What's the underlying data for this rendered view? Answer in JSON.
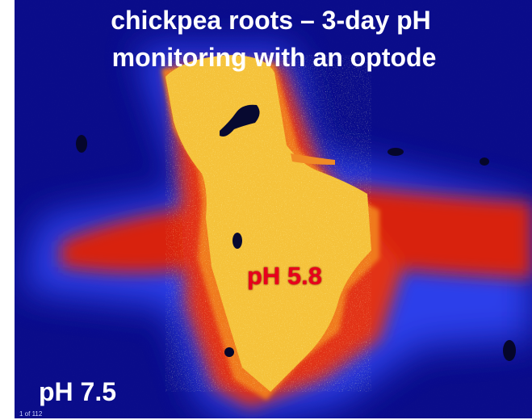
{
  "title": {
    "line1": "chickpea roots – 3-day pH",
    "line2": "monitoring with an optode"
  },
  "labels": {
    "root_ph": "pH 5.8",
    "soil_ph": "pH 7.5"
  },
  "slide_counter": "1 of 112",
  "colors": {
    "background_blue": "#0a0c8a",
    "halo_red": "#e0260f",
    "root_yellow": "#f5c23a",
    "label_red": "#e8001c"
  }
}
